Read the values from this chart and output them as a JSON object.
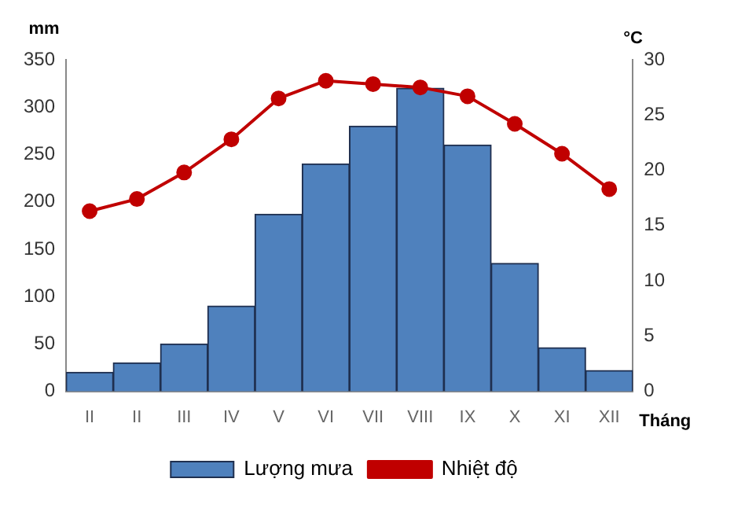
{
  "chart_data": {
    "type": "bar",
    "xlabel": "Tháng",
    "ylabel": "mm",
    "y2label": "°C",
    "categories": [
      "II",
      "II",
      "III",
      "IV",
      "V",
      "VI",
      "VII",
      "VIII",
      "IX",
      "X",
      "XI",
      "XII"
    ],
    "series": [
      {
        "name": "Lượng mưa",
        "color": "#4f81bd",
        "values": [
          20,
          30,
          50,
          90,
          187,
          240,
          280,
          320,
          260,
          135,
          46,
          22
        ]
      },
      {
        "name": "Nhiệt độ",
        "type": "line",
        "axis": "y2",
        "color": "#c00000",
        "marker": "circle",
        "values": [
          16.3,
          17.4,
          19.8,
          22.8,
          26.5,
          28.1,
          27.8,
          27.5,
          26.7,
          24.2,
          21.5,
          18.3
        ]
      }
    ],
    "ylim": [
      0,
      350
    ],
    "yticks": [
      0,
      50,
      100,
      150,
      200,
      250,
      300,
      350
    ],
    "y2lim": [
      0,
      30
    ],
    "y2ticks": [
      0,
      5,
      10,
      15,
      20,
      25,
      30
    ],
    "grid": false,
    "legend": "bottom"
  }
}
